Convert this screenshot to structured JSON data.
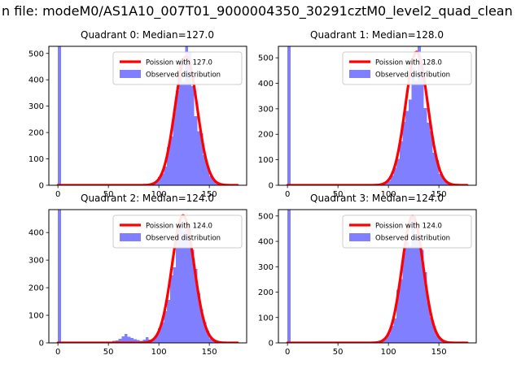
{
  "figure": {
    "suptitle": "n file: modeM0/AS1A10_007T01_9000004350_30291cztM0_level2_quad_clean",
    "background": "#ffffff",
    "text_color": "#000000",
    "bar_color": "#0000ff",
    "bar_alpha": 0.5,
    "line_color": "#ff0000",
    "legend_border_color": "#cccccc"
  },
  "chart_data": [
    {
      "type": "bar",
      "subtype": "histogram-with-poisson-fit",
      "title": "Quadrant 0: Median=127.0",
      "median": 127.0,
      "legend": [
        "Poission with 127.0",
        "Observed distribution"
      ],
      "legend_position": "upper right",
      "xlabel": "",
      "ylabel": "",
      "xlim": [
        -9,
        187
      ],
      "ylim": [
        0,
        527
      ],
      "xticks": [
        0,
        50,
        100,
        150
      ],
      "yticks": [
        0,
        100,
        200,
        300,
        400,
        500
      ],
      "bins": {
        "start": 0,
        "end": 177,
        "width": 3
      },
      "zero_spike_height": 600,
      "observed": {
        "peak": 470,
        "center": 127,
        "sigma": 11
      },
      "poisson_curve": {
        "peak": 488,
        "center": 127,
        "sigma": 11
      },
      "extra_bumps": []
    },
    {
      "type": "bar",
      "subtype": "histogram-with-poisson-fit",
      "title": "Quadrant 1: Median=128.0",
      "median": 128.0,
      "legend": [
        "Poission with 128.0",
        "Observed distribution"
      ],
      "legend_position": "upper right",
      "xlabel": "",
      "ylabel": "",
      "xlim": [
        -9,
        187
      ],
      "ylim": [
        0,
        545
      ],
      "xticks": [
        0,
        50,
        100,
        150
      ],
      "yticks": [
        0,
        100,
        200,
        300,
        400,
        500
      ],
      "bins": {
        "start": 0,
        "end": 177,
        "width": 3
      },
      "zero_spike_height": 600,
      "observed": {
        "peak": 500,
        "center": 128,
        "sigma": 11
      },
      "poisson_curve": {
        "peak": 523,
        "center": 128,
        "sigma": 11
      },
      "extra_bumps": []
    },
    {
      "type": "bar",
      "subtype": "histogram-with-poisson-fit",
      "title": "Quadrant 2: Median=124.0",
      "median": 124.0,
      "legend": [
        "Poission with 124.0",
        "Observed distribution"
      ],
      "legend_position": "upper right",
      "xlabel": "",
      "ylabel": "",
      "xlim": [
        -9,
        187
      ],
      "ylim": [
        0,
        483
      ],
      "xticks": [
        0,
        50,
        100,
        150
      ],
      "yticks": [
        0,
        100,
        200,
        300,
        400
      ],
      "bins": {
        "start": 0,
        "end": 177,
        "width": 3
      },
      "zero_spike_height": 600,
      "observed": {
        "peak": 445,
        "center": 124,
        "sigma": 11
      },
      "poisson_curve": {
        "peak": 462,
        "center": 124,
        "sigma": 11
      },
      "extra_bumps": [
        [
          54,
          8
        ],
        [
          57,
          10
        ],
        [
          60,
          14
        ],
        [
          63,
          22
        ],
        [
          66,
          30
        ],
        [
          69,
          20
        ],
        [
          72,
          16
        ],
        [
          75,
          12
        ],
        [
          78,
          10
        ],
        [
          81,
          9
        ],
        [
          84,
          14
        ],
        [
          87,
          18
        ],
        [
          90,
          10
        ],
        [
          93,
          6
        ]
      ]
    },
    {
      "type": "bar",
      "subtype": "histogram-with-poisson-fit",
      "title": "Quadrant 3: Median=124.0",
      "median": 124.0,
      "legend": [
        "Poission with 124.0",
        "Observed distribution"
      ],
      "legend_position": "upper right",
      "xlabel": "",
      "ylabel": "",
      "xlim": [
        -9,
        187
      ],
      "ylim": [
        0,
        525
      ],
      "xticks": [
        0,
        50,
        100,
        150
      ],
      "yticks": [
        0,
        100,
        200,
        300,
        400,
        500
      ],
      "bins": {
        "start": 0,
        "end": 177,
        "width": 3
      },
      "zero_spike_height": 600,
      "observed": {
        "peak": 480,
        "center": 124,
        "sigma": 10.5
      },
      "poisson_curve": {
        "peak": 500,
        "center": 124,
        "sigma": 10.5
      },
      "extra_bumps": []
    }
  ]
}
